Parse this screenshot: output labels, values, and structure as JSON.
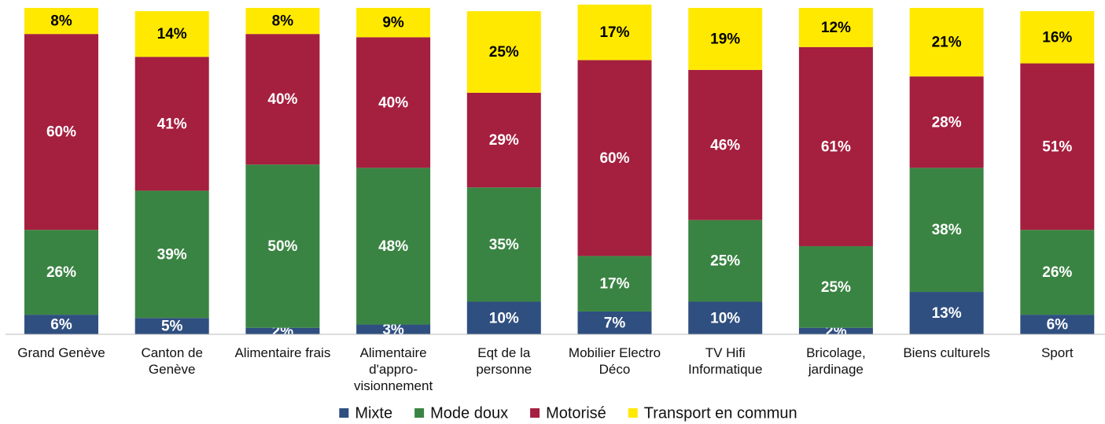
{
  "chart_data": {
    "type": "stacked_bar",
    "categories": [
      "Grand Genève",
      "Canton de Genève",
      "Alimentaire frais",
      "Alimentaire d'appro-visionnement",
      "Eqt de la personne",
      "Mobilier Electro Déco",
      "TV Hifi Informatique",
      "Bricolage, jardinage",
      "Biens culturels",
      "Sport"
    ],
    "ylim": [
      0,
      100
    ],
    "series": [
      {
        "name": "Mixte",
        "color": "#2f4f80",
        "values": [
          6,
          5,
          2,
          3,
          10,
          7,
          10,
          2,
          13,
          6
        ],
        "value_labels": [
          "6%",
          "5%",
          "2%",
          "3%",
          "10%",
          "7%",
          "10%",
          "2%",
          "13%",
          "6%"
        ]
      },
      {
        "name": "Mode doux",
        "color": "#3a8443",
        "values": [
          26,
          39,
          50,
          48,
          35,
          17,
          25,
          25,
          38,
          26
        ],
        "value_labels": [
          "26%",
          "39%",
          "50%",
          "48%",
          "35%",
          "17%",
          "25%",
          "25%",
          "38%",
          "26%"
        ]
      },
      {
        "name": "Motorisé",
        "color": "#a51f3f",
        "values": [
          60,
          41,
          40,
          40,
          29,
          60,
          46,
          61,
          28,
          51
        ],
        "value_labels": [
          "60%",
          "41%",
          "40%",
          "40%",
          "29%",
          "60%",
          "46%",
          "61%",
          "28%",
          "51%"
        ]
      },
      {
        "name": "Transport en commun",
        "color": "#ffe900",
        "values": [
          8,
          14,
          8,
          9,
          25,
          17,
          19,
          12,
          21,
          16
        ],
        "value_labels": [
          "8%",
          "14%",
          "8%",
          "9%",
          "25%",
          "17%",
          "19%",
          "12%",
          "21%",
          "16%"
        ]
      }
    ],
    "legend": "bottom"
  }
}
